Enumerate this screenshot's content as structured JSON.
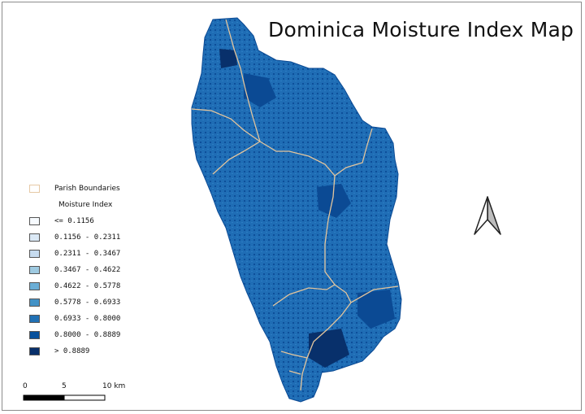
{
  "title": "Dominica Moisture Index Map",
  "legend": {
    "boundary_label": "Parish Boundaries",
    "index_title": "Moisture Index",
    "classes": [
      {
        "label": "<= 0.1156",
        "color": "#f7fbff"
      },
      {
        "label": "0.1156 - 0.2311",
        "color": "#dbe9f6"
      },
      {
        "label": "0.2311 - 0.3467",
        "color": "#c6dbef"
      },
      {
        "label": "0.3467 - 0.4622",
        "color": "#9ecae1"
      },
      {
        "label": "0.4622 - 0.5778",
        "color": "#6baed6"
      },
      {
        "label": "0.5778 - 0.6933",
        "color": "#4292c6"
      },
      {
        "label": "0.6933 - 0.8000",
        "color": "#2171b5"
      },
      {
        "label": "0.8000 - 0.8889",
        "color": "#08519c"
      },
      {
        "label": "> 0.8889",
        "color": "#08306b"
      }
    ]
  },
  "scalebar": {
    "labels": [
      "0",
      "5",
      "10 km"
    ]
  },
  "north_arrow": "north-arrow-icon",
  "colors": {
    "boundary": "#e8c9a0",
    "island_base": "#1f6db5",
    "island_dark": "#0b4a94"
  }
}
